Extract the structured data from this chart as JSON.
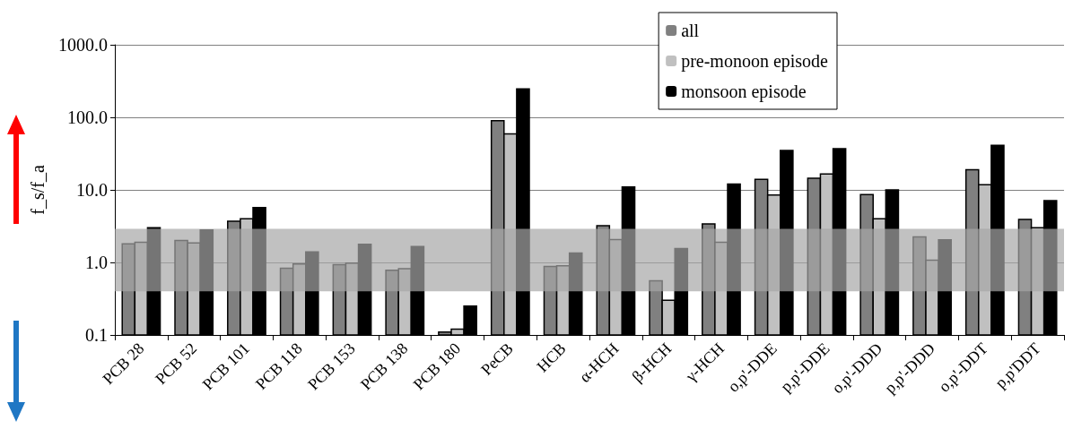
{
  "chart_data": {
    "type": "bar",
    "ylabel": "f_s/f_a",
    "log": true,
    "grid": "y",
    "legend": "top right",
    "categories": [
      "PCB 28",
      "PCB 52",
      "PCB 101",
      "PCB 118",
      "PCB 153",
      "PCB 138",
      "PCB 180",
      "PeCB",
      "HCB",
      "α-HCH",
      "β-HCH",
      "γ-HCH",
      "o,p'-DDE",
      "p,p'-DDE",
      "o,p'-DDD",
      "p,p'-DDD",
      "o,p'-DDT",
      "p,p'DDT"
    ],
    "series": [
      {
        "name": "all",
        "color": "#808080",
        "values": [
          1.8,
          2.0,
          3.7,
          0.83,
          0.93,
          0.78,
          0.11,
          90,
          0.88,
          3.2,
          0.56,
          3.4,
          14,
          14.5,
          8.6,
          2.25,
          19,
          3.9
        ]
      },
      {
        "name": "pre-monoon episode",
        "color": "#c0c0c0",
        "values": [
          1.9,
          1.85,
          4.0,
          0.95,
          0.98,
          0.82,
          0.12,
          59,
          0.9,
          2.06,
          0.3,
          1.9,
          8.5,
          16.6,
          4.0,
          1.07,
          11.8,
          3.0
        ]
      },
      {
        "name": "monsoon episode",
        "color": "#000000",
        "values": [
          3.0,
          2.8,
          5.7,
          1.4,
          1.78,
          1.66,
          0.25,
          246,
          1.35,
          11,
          1.55,
          12,
          35,
          37,
          10,
          2.05,
          41,
          7.1
        ]
      }
    ],
    "ylim": [
      0.1,
      1000
    ],
    "yticks": [
      {
        "value": 0.1,
        "label": "0.1"
      },
      {
        "value": 1,
        "label": "1.0"
      },
      {
        "value": 10,
        "label": "10.0"
      },
      {
        "value": 100,
        "label": "100.0"
      },
      {
        "value": 1000,
        "label": "1000.0"
      }
    ],
    "bands": [
      {
        "axis": "y",
        "from": 0.4,
        "to": 2.9,
        "color": "#a6a6a6"
      }
    ]
  }
}
